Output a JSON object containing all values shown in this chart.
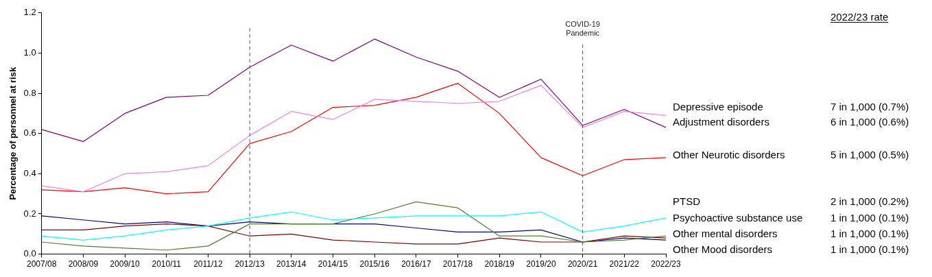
{
  "chart_data": {
    "type": "line",
    "ylabel": "Percentage of personnel at risk",
    "categories": [
      "2007/08",
      "2008/09",
      "2009/10",
      "2010/11",
      "2011/12",
      "2012/13",
      "2013/14",
      "2014/15",
      "2015/16",
      "2016/17",
      "2017/18",
      "2018/19",
      "2019/20",
      "2020/21",
      "2021/22",
      "2022/23"
    ],
    "ylim": [
      0,
      1.2
    ],
    "yticks": [
      {
        "value": 0,
        "label": "0.0"
      },
      {
        "value": 0.2,
        "label": "0.2"
      },
      {
        "value": 0.4,
        "label": "0.4"
      },
      {
        "value": 0.6,
        "label": "0.6"
      },
      {
        "value": 0.8,
        "label": "0.8"
      },
      {
        "value": 1,
        "label": "1.0"
      },
      {
        "value": 1.2,
        "label": "1.2"
      }
    ],
    "grid": false,
    "legend": false,
    "marker": "none",
    "line_style": "solid",
    "series": [
      {
        "name": "Depressive episode",
        "color": "#ee82ee",
        "values": [
          0.34,
          0.31,
          0.4,
          0.41,
          0.44,
          0.59,
          0.71,
          0.67,
          0.77,
          0.76,
          0.75,
          0.76,
          0.84,
          0.63,
          0.71,
          0.69
        ]
      },
      {
        "name": "Adjustment disorders",
        "color": "#800080",
        "values": [
          0.62,
          0.56,
          0.7,
          0.78,
          0.79,
          0.93,
          1.04,
          0.96,
          1.07,
          0.98,
          0.91,
          0.78,
          0.87,
          0.64,
          0.72,
          0.63
        ]
      },
      {
        "name": "Other Neurotic disorders",
        "color": "#ff0000",
        "values": [
          0.32,
          0.31,
          0.33,
          0.3,
          0.31,
          0.55,
          0.61,
          0.73,
          0.74,
          0.78,
          0.85,
          0.7,
          0.48,
          0.39,
          0.47,
          0.48
        ]
      },
      {
        "name": "PTSD",
        "color": "#00ffff",
        "values": [
          0.09,
          0.07,
          0.09,
          0.12,
          0.14,
          0.18,
          0.21,
          0.17,
          0.18,
          0.19,
          0.19,
          0.19,
          0.21,
          0.11,
          0.14,
          0.18
        ]
      },
      {
        "name": "Psychoactive substance use",
        "color": "#4f7f2f",
        "values": [
          0.06,
          0.04,
          0.03,
          0.02,
          0.04,
          0.15,
          0.15,
          0.15,
          0.2,
          0.26,
          0.23,
          0.09,
          0.09,
          0.06,
          0.07,
          0.09
        ]
      },
      {
        "name": "Other mental disorders",
        "color": "#800000",
        "values": [
          0.12,
          0.12,
          0.14,
          0.15,
          0.14,
          0.09,
          0.1,
          0.07,
          0.06,
          0.05,
          0.05,
          0.08,
          0.06,
          0.06,
          0.09,
          0.08
        ]
      },
      {
        "name": "Other Mood disorders",
        "color": "#000080",
        "values": [
          0.19,
          0.17,
          0.15,
          0.16,
          0.14,
          0.16,
          0.15,
          0.15,
          0.15,
          0.13,
          0.11,
          0.11,
          0.12,
          0.06,
          0.08,
          0.07
        ]
      }
    ],
    "ref_lines": [
      {
        "axis": "x",
        "value": "2012/13",
        "color": "#44546a",
        "line_style": "dashed"
      },
      {
        "axis": "x",
        "value": "2020/21",
        "label": "COVID-19 Pandemic",
        "color": "#44546a",
        "line_style": "dashed"
      }
    ],
    "annotations": [
      "2022/23 rate",
      "7 in 1,000 (0.7%)",
      "6 in 1,000 (0.6%)",
      "5 in 1,000 (0.5%)",
      "2 in 1,000 (0.2%)",
      "1 in 1,000 (0.1%)",
      "1 in 1,000 (0.1%)",
      "1 in 1,000 (0.1%)"
    ]
  }
}
